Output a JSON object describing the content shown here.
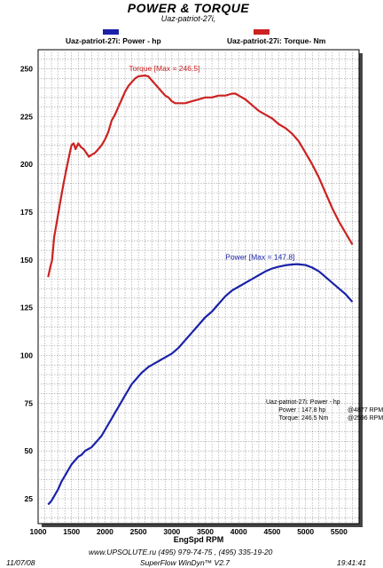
{
  "header": {
    "title": "POWER & TORQUE",
    "subtitle": "Uaz-patriot-27i,"
  },
  "legend": {
    "power_label": "Uaz-patriot-27i: Power -  hp",
    "torque_label": "Uaz-patriot-27i: Torque-  Nm"
  },
  "colors": {
    "power": "#1a22a8",
    "torque": "#cc2222",
    "grid": "#9a9a9a"
  },
  "stats": {
    "title": "Uaz-patriot-27i: Power - hp",
    "power_key": "Power :",
    "power_val": "147.8 hp",
    "power_at": "@4877 RPM",
    "torque_key": "Torque:",
    "torque_val": "246.5 Nm",
    "torque_at": "@2596 RPM"
  },
  "footer": {
    "website": "www.UPSOLUTE.ru  (495) 979-74-75 , (495) 335-19-20",
    "software": "SuperFlow WinDyn™ V2.7",
    "date": "11/07/08",
    "time": "19:41:41"
  },
  "chart_data": {
    "type": "line",
    "xlabel": "EngSpd  RPM",
    "xlim": [
      1000,
      5800
    ],
    "ylim": [
      12,
      260
    ],
    "x_ticks": [
      1000,
      1500,
      2000,
      2500,
      3000,
      3500,
      4000,
      4500,
      5000,
      5500
    ],
    "y_ticks": [
      25,
      50,
      75,
      100,
      125,
      150,
      175,
      200,
      225,
      250
    ],
    "grid": true,
    "series": [
      {
        "name": "Uaz-patriot-27i: Torque-  Nm",
        "color": "#cc2222",
        "peak_label": "Torque [Max = 246.5]",
        "x": [
          1150,
          1180,
          1210,
          1240,
          1270,
          1300,
          1340,
          1380,
          1420,
          1450,
          1480,
          1500,
          1530,
          1560,
          1600,
          1640,
          1680,
          1720,
          1760,
          1800,
          1850,
          1900,
          1950,
          2000,
          2050,
          2100,
          2150,
          2200,
          2250,
          2300,
          2350,
          2400,
          2450,
          2500,
          2550,
          2596,
          2650,
          2700,
          2750,
          2800,
          2850,
          2900,
          2950,
          3000,
          3050,
          3100,
          3150,
          3200,
          3300,
          3400,
          3500,
          3600,
          3700,
          3800,
          3900,
          3950,
          4000,
          4100,
          4200,
          4300,
          4400,
          4500,
          4600,
          4700,
          4800,
          4900,
          5000,
          5100,
          5200,
          5300,
          5400,
          5500,
          5600,
          5700
        ],
        "values": [
          141,
          146,
          150,
          162,
          168,
          174,
          182,
          190,
          197,
          202,
          207,
          210,
          211,
          208,
          211,
          209,
          208,
          206,
          204,
          205,
          206,
          208,
          210,
          213,
          217,
          223,
          226,
          230,
          234,
          238,
          241,
          243,
          245,
          246,
          246.3,
          246.5,
          246,
          244,
          242,
          240,
          238,
          236,
          235,
          233,
          232,
          232,
          232,
          232,
          233,
          234,
          235,
          235,
          236,
          236,
          237,
          237,
          236,
          234,
          231,
          228,
          226,
          224,
          221,
          219,
          216,
          212,
          206,
          200,
          193,
          185,
          177,
          170,
          164,
          158
        ]
      },
      {
        "name": "Uaz-patriot-27i: Power -  hp",
        "color": "#1a22a8",
        "peak_label": "Power  [Max = 147.8]",
        "x": [
          1150,
          1200,
          1250,
          1300,
          1350,
          1400,
          1450,
          1500,
          1550,
          1600,
          1650,
          1700,
          1750,
          1800,
          1850,
          1900,
          1950,
          2000,
          2050,
          2100,
          2150,
          2200,
          2250,
          2300,
          2350,
          2400,
          2450,
          2500,
          2550,
          2600,
          2650,
          2700,
          2750,
          2800,
          2850,
          2900,
          3000,
          3100,
          3200,
          3300,
          3400,
          3500,
          3600,
          3700,
          3800,
          3900,
          4000,
          4100,
          4200,
          4300,
          4400,
          4500,
          4600,
          4700,
          4800,
          4877,
          5000,
          5100,
          5200,
          5300,
          5400,
          5500,
          5600,
          5700
        ],
        "values": [
          22,
          24,
          27,
          30,
          34,
          37,
          40,
          43,
          45,
          47,
          48,
          50,
          51,
          52,
          54,
          56,
          58,
          61,
          64,
          67,
          70,
          73,
          76,
          79,
          82,
          85,
          87,
          89,
          91,
          92.5,
          94,
          95,
          96,
          97,
          98,
          99,
          101,
          104,
          108,
          112,
          116,
          120,
          123,
          127,
          131,
          134,
          136,
          138,
          140,
          142,
          144,
          145.5,
          146.5,
          147.2,
          147.6,
          147.8,
          147.3,
          146,
          144,
          141,
          138,
          135,
          132,
          128
        ]
      }
    ]
  }
}
